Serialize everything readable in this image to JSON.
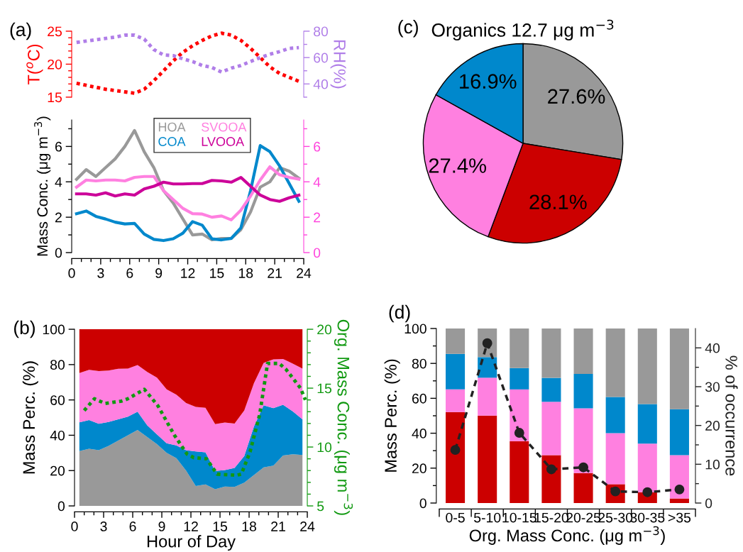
{
  "chart_data": [
    {
      "type": "line",
      "annotations": [
        "(a)"
      ],
      "ylabel": "T($^{o}$C)",
      "y2label": "RH(%)",
      "x": [
        0.5,
        1.5,
        2.5,
        3.5,
        4.5,
        5.5,
        6.5,
        7.5,
        8.5,
        9.5,
        10.5,
        11.5,
        12.5,
        13.5,
        14.5,
        15.5,
        16.5,
        17.5,
        18.5,
        19.5,
        20.5,
        21.5,
        22.5,
        23.5
      ],
      "xlim": [
        0,
        24
      ],
      "ylim": [
        15,
        25
      ],
      "y2lim": [
        30,
        80
      ],
      "yticks": [
        15,
        {
          "value": 16,
          "label": null
        },
        {
          "value": 17,
          "label": null
        },
        {
          "value": 18,
          "label": null
        },
        {
          "value": 19,
          "label": null
        },
        20,
        {
          "value": 21,
          "label": null
        },
        {
          "value": 22,
          "label": null
        },
        {
          "value": 23,
          "label": null
        },
        {
          "value": 24,
          "label": null
        },
        25
      ],
      "y2ticks": [
        {
          "value": 30,
          "label": null
        },
        40,
        {
          "value": 50,
          "label": null
        },
        60,
        {
          "value": 70,
          "label": null
        },
        80
      ],
      "series": [
        {
          "color": "#ff0000",
          "line_style": "dotted",
          "values": [
            17.1,
            16.8,
            16.5,
            16.2,
            16.0,
            15.8,
            15.6,
            16.2,
            17.5,
            19.0,
            20.5,
            21.8,
            22.8,
            23.6,
            24.3,
            24.7,
            24.4,
            23.6,
            22.4,
            21.0,
            19.6,
            18.6,
            18.0,
            17.4
          ]
        },
        {
          "color": "#b07ee8",
          "line_style": "dotted",
          "axis": "y2",
          "values": [
            71.5,
            72.5,
            73.5,
            74.5,
            75.5,
            77,
            77,
            74,
            66,
            62,
            61.5,
            59,
            57,
            54,
            52.5,
            49,
            52,
            54,
            57,
            60,
            62.5,
            64.5,
            67,
            67.5
          ]
        }
      ]
    },
    {
      "type": "line",
      "ylabel": "Mass Conc. (μg m$^{−3}$)",
      "legend": "top",
      "x": [
        0.5,
        1.5,
        2.5,
        3.5,
        4.5,
        5.5,
        6.5,
        7.5,
        8.5,
        9.5,
        10.5,
        11.5,
        12.5,
        13.5,
        14.5,
        15.5,
        16.5,
        17.5,
        18.5,
        19.5,
        20.5,
        21.5,
        22.5,
        23.5
      ],
      "xlim": [
        0,
        24
      ],
      "ylim": [
        0,
        7.5
      ],
      "y2lim": [
        0,
        7.5
      ],
      "xticks": [
        0,
        {
          "value": 1,
          "label": null
        },
        {
          "value": 2,
          "label": null
        },
        3,
        {
          "value": 4,
          "label": null
        },
        {
          "value": 5,
          "label": null
        },
        6,
        {
          "value": 7,
          "label": null
        },
        {
          "value": 8,
          "label": null
        },
        9,
        {
          "value": 10,
          "label": null
        },
        {
          "value": 11,
          "label": null
        },
        12,
        {
          "value": 13,
          "label": null
        },
        {
          "value": 14,
          "label": null
        },
        15,
        {
          "value": 16,
          "label": null
        },
        {
          "value": 17,
          "label": null
        },
        18,
        {
          "value": 19,
          "label": null
        },
        {
          "value": 20,
          "label": null
        },
        21,
        {
          "value": 22,
          "label": null
        },
        {
          "value": 23,
          "label": null
        },
        24
      ],
      "yticks": [
        0,
        {
          "value": 1,
          "label": null
        },
        2,
        {
          "value": 3,
          "label": null
        },
        4,
        {
          "value": 5,
          "label": null
        },
        6,
        {
          "value": 7,
          "label": null
        }
      ],
      "y2ticks": [
        0,
        {
          "value": 1,
          "label": null
        },
        2,
        {
          "value": 3,
          "label": null
        },
        4,
        {
          "value": 5,
          "label": null
        },
        6,
        {
          "value": 7,
          "label": null
        }
      ],
      "series": [
        {
          "name": "HOA",
          "color": "#999999",
          "values": [
            4.14,
            4.69,
            4.3,
            4.8,
            5.3,
            6.0,
            6.9,
            5.7,
            4.8,
            3.5,
            2.8,
            1.9,
            1.0,
            1.05,
            0.72,
            0.8,
            0.8,
            1.3,
            2.3,
            3.7,
            4.0,
            4.8,
            4.6,
            4.2
          ]
        },
        {
          "name": "COA",
          "color": "#0088cc",
          "values": [
            2.2,
            2.35,
            2.05,
            1.9,
            1.72,
            1.62,
            1.65,
            1.05,
            0.75,
            0.68,
            0.78,
            1.1,
            1.75,
            1.55,
            0.78,
            0.72,
            0.8,
            1.4,
            3.5,
            6.05,
            5.7,
            4.9,
            3.9,
            2.9
          ]
        },
        {
          "name": "SVOOA",
          "color": "#ff80e0",
          "values": [
            3.7,
            4.1,
            4.05,
            4.1,
            4.1,
            4.05,
            4.25,
            4.3,
            4.3,
            3.5,
            3.0,
            2.5,
            2.2,
            2.18,
            2.0,
            2.07,
            1.85,
            2.4,
            3.2,
            4.1,
            4.85,
            4.4,
            4.25,
            4.15
          ]
        },
        {
          "name": "LVOOA",
          "color": "#cc0099",
          "values": [
            3.32,
            3.32,
            3.25,
            3.38,
            3.2,
            3.32,
            3.25,
            3.6,
            3.75,
            3.98,
            3.88,
            3.88,
            3.9,
            3.9,
            4.08,
            4.05,
            3.98,
            4.25,
            3.75,
            3.25,
            3.0,
            2.9,
            3.1,
            3.25
          ]
        }
      ]
    },
    {
      "type": "area",
      "stacked": true,
      "annotations": [
        "(b)"
      ],
      "xlabel": "Hour of Day",
      "ylabel": "Mass Perc. (%)",
      "y2label": "Org. Mass Conc. (μg m$^{−3}$)",
      "x": [
        0.5,
        1.5,
        2.5,
        3.5,
        4.5,
        5.5,
        6.5,
        7.5,
        8.5,
        9.5,
        10.5,
        11.5,
        12.5,
        13.5,
        14.5,
        15.5,
        16.5,
        17.5,
        18.5,
        19.5,
        20.5,
        21.5,
        22.5,
        23.5
      ],
      "xlim": [
        0,
        24
      ],
      "ylim": [
        0,
        100
      ],
      "y2lim": [
        5,
        20
      ],
      "xticks": [
        0,
        {
          "value": 1,
          "label": null
        },
        {
          "value": 2,
          "label": null
        },
        3,
        {
          "value": 4,
          "label": null
        },
        {
          "value": 5,
          "label": null
        },
        6,
        {
          "value": 7,
          "label": null
        },
        {
          "value": 8,
          "label": null
        },
        9,
        {
          "value": 10,
          "label": null
        },
        {
          "value": 11,
          "label": null
        },
        12,
        {
          "value": 13,
          "label": null
        },
        {
          "value": 14,
          "label": null
        },
        15,
        {
          "value": 16,
          "label": null
        },
        {
          "value": 17,
          "label": null
        },
        18,
        {
          "value": 19,
          "label": null
        },
        {
          "value": 20,
          "label": null
        },
        21,
        {
          "value": 22,
          "label": null
        },
        {
          "value": 23,
          "label": null
        },
        24
      ],
      "yticks": [
        0,
        20,
        40,
        60,
        80,
        100
      ],
      "y2ticks": [
        5,
        {
          "value": 6,
          "label": null
        },
        {
          "value": 7,
          "label": null
        },
        {
          "value": 8,
          "label": null
        },
        {
          "value": 9,
          "label": null
        },
        10,
        {
          "value": 11,
          "label": null
        },
        {
          "value": 12,
          "label": null
        },
        {
          "value": 13,
          "label": null
        },
        {
          "value": 14,
          "label": null
        },
        15,
        {
          "value": 16,
          "label": null
        },
        {
          "value": 17,
          "label": null
        },
        {
          "value": 18,
          "label": null
        },
        {
          "value": 19,
          "label": null
        },
        20
      ],
      "series": [
        {
          "color": "#999999",
          "values": [
            31,
            32.3,
            31.5,
            34,
            37,
            40,
            43,
            39,
            35,
            30,
            27,
            20,
            11.3,
            12.2,
            9.5,
            11,
            10.8,
            13.2,
            17.5,
            21.8,
            22.8,
            28.5,
            29.2,
            28.8
          ]
        },
        {
          "color": "#0088cc",
          "values": [
            16.3,
            16.3,
            15,
            13.5,
            12,
            10.5,
            10.3,
            6.6,
            5.5,
            5.5,
            7.3,
            11.5,
            19.5,
            18.1,
            10.3,
            9.3,
            10.7,
            15,
            27.5,
            35.2,
            32.5,
            28.8,
            24.3,
            20.2
          ]
        },
        {
          "color": "#ff80e0",
          "values": [
            27.9,
            28.4,
            29.8,
            29.1,
            28.6,
            27.2,
            26.4,
            30.2,
            32.1,
            30.5,
            28.7,
            26.8,
            25.2,
            25.2,
            26.5,
            26.9,
            25.1,
            25.8,
            24.5,
            24,
            27.7,
            25.9,
            27.1,
            28.7
          ]
        },
        {
          "color": "#cc0000",
          "values": [
            24.8,
            23,
            23.7,
            23.4,
            22.4,
            22.3,
            20.3,
            24.2,
            27.4,
            34,
            37,
            41.7,
            44,
            44.5,
            53.7,
            52.8,
            53.4,
            46,
            30.5,
            19,
            17,
            16.8,
            19.4,
            22.3
          ]
        },
        {
          "type": "line",
          "axis": "y2",
          "color": "#119911",
          "line_style": "dotted",
          "x": [
            1.0,
            2.05,
            3.15,
            4.85,
            5.5,
            7.2,
            8.6,
            10.3,
            11.6,
            12.3,
            13.6,
            14.7,
            16.7,
            17.2,
            18.1,
            19.1,
            19.9,
            21.1,
            21.8,
            23.3,
            23.8
          ],
          "values": [
            13.1,
            14.1,
            13.7,
            13.9,
            14.1,
            14.9,
            13.5,
            11.0,
            9.4,
            9.1,
            9.0,
            7.7,
            7.6,
            7.7,
            9.6,
            12.8,
            17.1,
            17.1,
            16.6,
            15.0,
            14.0
          ]
        }
      ]
    },
    {
      "type": "pie",
      "title": "Organics 12.7 μg m$^{−3}$",
      "annotations": [
        "(c)"
      ],
      "categories": [
        null,
        null,
        null,
        null
      ],
      "values": [
        27.6,
        28.1,
        27.4,
        16.9
      ],
      "colors": [
        "#999999",
        "#cc0000",
        "#ff80e0",
        "#0088cc"
      ],
      "value_labels": [
        "27.6%",
        "28.1%",
        "27.4%",
        "16.9%"
      ]
    },
    {
      "type": "bar",
      "stacked": true,
      "annotations": [
        "(d)"
      ],
      "xlabel": "Org. Mass Conc. (μg m$^{−3}$)",
      "ylabel": "Mass Perc. (%)",
      "y2label": "% of occurrence",
      "categories": [
        "0-5",
        "5-10",
        "10-15",
        "15-20",
        "20-25",
        "25-30",
        "30-35",
        ">35"
      ],
      "ylim": [
        0,
        100
      ],
      "y2lim": [
        0,
        45
      ],
      "yticks": [
        0,
        {
          "value": 10,
          "label": null
        },
        20,
        {
          "value": 30,
          "label": null
        },
        40,
        {
          "value": 50,
          "label": null
        },
        60,
        {
          "value": 70,
          "label": null
        },
        80,
        {
          "value": 90,
          "label": null
        },
        100
      ],
      "y2ticks": [
        0,
        {
          "value": 5,
          "label": null
        },
        10,
        {
          "value": 15,
          "label": null
        },
        20,
        {
          "value": 25,
          "label": null
        },
        30,
        {
          "value": 35,
          "label": null
        },
        40
      ],
      "series": [
        {
          "color": "#cc0000",
          "values": [
            52.1,
            50.1,
            35.5,
            27.4,
            17.2,
            10.8,
            6.2,
            2.6
          ]
        },
        {
          "color": "#ff80e0",
          "values": [
            13,
            21.7,
            29.6,
            30.6,
            37.1,
            29.2,
            27.8,
            24.8
          ]
        },
        {
          "color": "#0088cc",
          "values": [
            20.4,
            11.8,
            12.2,
            13.7,
            19.7,
            20.8,
            22.7,
            26.4
          ]
        },
        {
          "color": "#999999",
          "values": [
            14.5,
            16.4,
            22.7,
            28.3,
            26,
            39.2,
            43.3,
            46.2
          ]
        },
        {
          "type": "line",
          "axis": "y2",
          "color": "#222222",
          "line_style": "dashed",
          "marker": "circle",
          "values": [
            13.7,
            41.2,
            18.1,
            8.7,
            9.2,
            3.0,
            2.8,
            3.5
          ]
        }
      ]
    }
  ]
}
